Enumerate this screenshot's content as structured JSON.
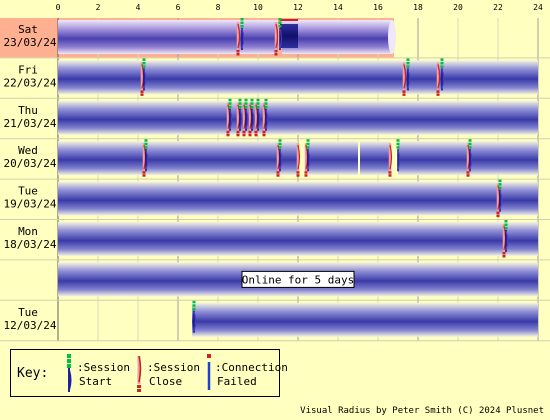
{
  "chart_data": {
    "type": "timeline",
    "x_axis": {
      "ticks": [
        "0",
        "2",
        "4",
        "6",
        "8",
        "10",
        "12",
        "14",
        "16",
        "18",
        "20",
        "22",
        "24"
      ],
      "range": [
        0,
        24
      ],
      "unit": "hour of day"
    },
    "rows": [
      {
        "day": "Sat",
        "date": "23/03/24",
        "highlight": true,
        "sessions": [
          {
            "start": 0,
            "end": 11
          },
          {
            "start": 11.2,
            "end": 16.7,
            "open_end": true
          }
        ],
        "starts": [
          9.2,
          11.1
        ],
        "closes": [
          9.0,
          10.9
        ],
        "failed": []
      },
      {
        "day": "Fri",
        "date": "22/03/24",
        "sessions": [
          {
            "start": 0,
            "end": 24
          }
        ],
        "starts": [
          4.3,
          17.5,
          19.2
        ],
        "closes": [
          4.2,
          17.3,
          19.0
        ],
        "failed": []
      },
      {
        "day": "Thu",
        "date": "21/03/24",
        "sessions": [
          {
            "start": 0,
            "end": 24
          }
        ],
        "starts": [
          8.6,
          9.1,
          9.4,
          9.7,
          10.0,
          10.4
        ],
        "closes": [
          8.5,
          9.0,
          9.3,
          9.6,
          9.9,
          10.3
        ],
        "failed": []
      },
      {
        "day": "Wed",
        "date": "20/03/24",
        "sessions": [
          {
            "start": 0,
            "end": 12.0
          },
          {
            "start": 12.5,
            "end": 15.0
          },
          {
            "start": 15.1,
            "end": 16.6
          },
          {
            "start": 17.0,
            "end": 24
          }
        ],
        "starts": [
          4.4,
          11.1,
          12.5,
          17.0,
          20.6
        ],
        "closes": [
          4.3,
          11.0,
          12.0,
          12.4,
          16.6,
          20.5
        ],
        "failed": []
      },
      {
        "day": "Tue",
        "date": "19/03/24",
        "sessions": [
          {
            "start": 0,
            "end": 24
          }
        ],
        "starts": [
          22.1
        ],
        "closes": [
          22.0
        ],
        "failed": []
      },
      {
        "day": "Mon",
        "date": "18/03/24",
        "sessions": [
          {
            "start": 0,
            "end": 24
          }
        ],
        "starts": [
          22.4
        ],
        "closes": [
          22.3
        ],
        "failed": []
      },
      {
        "day": "",
        "date": "",
        "sessions": [
          {
            "start": 0,
            "end": 24
          }
        ],
        "starts": [],
        "closes": [],
        "failed": [],
        "label": "Online for 5 days"
      },
      {
        "day": "Tue",
        "date": "12/03/24",
        "sessions": [
          {
            "start": 6.7,
            "end": 24
          }
        ],
        "starts": [
          6.8
        ],
        "closes": [],
        "failed": []
      }
    ],
    "colors": {
      "background": "#ffffc0",
      "today": "#ffb090",
      "band_dark": "#3a3aa8",
      "band_light": "#f4f4e0",
      "start": "#00c040",
      "close": "#d02020",
      "failed": "#2040d0"
    }
  },
  "key": {
    "label": "Key:",
    "items": [
      {
        "line1": ":Session",
        "line2": "Start"
      },
      {
        "line1": ":Session",
        "line2": "Close"
      },
      {
        "line1": ":Connection",
        "line2": "Failed"
      }
    ]
  },
  "footer": "Visual Radius by Peter Smith (C) 2024 Plusnet"
}
